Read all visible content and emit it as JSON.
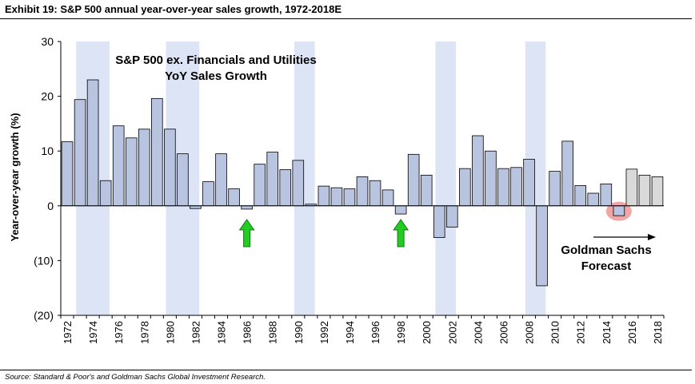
{
  "title": "Exhibit 19: S&P 500 annual year-over-year sales growth, 1972-2018E",
  "source": "Source: Standard & Poor's and Goldman Sachs Global Investment Research.",
  "chart_data": {
    "type": "bar",
    "ylabel": "Year-over-year growth (%)",
    "ylim": [
      -20,
      30
    ],
    "yticks": [
      -20,
      -10,
      0,
      10,
      20,
      30
    ],
    "ytick_labels": [
      "(20)",
      "(10)",
      "0",
      "10",
      "20",
      "30"
    ],
    "xticks": [
      1972,
      1974,
      1976,
      1978,
      1980,
      1982,
      1984,
      1986,
      1988,
      1990,
      1992,
      1994,
      1996,
      1998,
      2000,
      2002,
      2004,
      2006,
      2008,
      2010,
      2012,
      2014,
      2016,
      2018
    ],
    "categories": [
      1972,
      1973,
      1974,
      1975,
      1976,
      1977,
      1978,
      1979,
      1980,
      1981,
      1982,
      1983,
      1984,
      1985,
      1986,
      1987,
      1988,
      1989,
      1990,
      1991,
      1992,
      1993,
      1994,
      1995,
      1996,
      1997,
      1998,
      1999,
      2000,
      2001,
      2002,
      2003,
      2004,
      2005,
      2006,
      2007,
      2008,
      2009,
      2010,
      2011,
      2012,
      2013,
      2014,
      2015,
      2016,
      2017,
      2018
    ],
    "values": [
      11.7,
      19.4,
      23.0,
      4.6,
      14.6,
      12.4,
      14.0,
      19.6,
      14.0,
      9.5,
      -0.5,
      4.4,
      9.5,
      3.1,
      -0.6,
      7.6,
      9.8,
      6.6,
      8.3,
      0.3,
      3.6,
      3.3,
      3.1,
      5.3,
      4.6,
      2.9,
      -1.5,
      9.4,
      5.6,
      -5.8,
      -3.9,
      6.8,
      12.8,
      10.0,
      6.8,
      7.0,
      8.5,
      -14.6,
      6.3,
      11.8,
      3.7,
      2.3,
      4.0,
      -1.8,
      6.7,
      5.6,
      5.3
    ],
    "forecast_years": [
      2016,
      2017,
      2018
    ],
    "recession_periods": [
      [
        1973,
        1975
      ],
      [
        1980,
        1982
      ],
      [
        1990,
        1991
      ],
      [
        2001,
        2002
      ],
      [
        2008,
        2009
      ]
    ],
    "arrows_at": [
      1986,
      1998
    ],
    "highlight_circle_at": 2015,
    "colors": {
      "bar": "#b8c4e0",
      "bar_stroke": "#000000",
      "forecast_bar": "#d9d9d9",
      "recession": "#dde4f5",
      "arrow": "#22cc22",
      "circle": "#f2a5a5"
    }
  },
  "annotations": {
    "inset_title_line1": "S&P 500 ex. Financials and Utilities",
    "inset_title_line2": "YoY Sales Growth",
    "forecast_line1": "Goldman Sachs",
    "forecast_line2": "Forecast"
  }
}
